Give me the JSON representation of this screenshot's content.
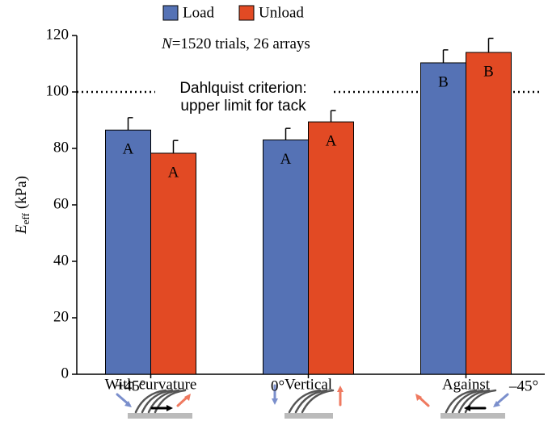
{
  "chart_data": {
    "type": "bar",
    "ylabel": {
      "symbol": "E",
      "subscript": "eff",
      "unit": "(kPa)"
    },
    "annotation": {
      "italic": "N",
      "rest": "=1520 trials, 26 arrays"
    },
    "categories": [
      "With curvature",
      "Vertical",
      "Against"
    ],
    "category_angles": [
      "+45°",
      "0°",
      "–45°"
    ],
    "series": [
      {
        "name": "Load",
        "color": "#5572b5",
        "values": [
          86.5,
          83,
          110.3
        ],
        "errors": [
          4.4,
          4.1,
          4.6
        ],
        "letters": [
          "A",
          "A",
          "B"
        ]
      },
      {
        "name": "Unload",
        "color": "#e24a24",
        "values": [
          78.3,
          89.4,
          114
        ],
        "errors": [
          4.5,
          4,
          5
        ],
        "letters": [
          "A",
          "A",
          "B"
        ]
      }
    ],
    "reference_line": {
      "value": 100,
      "label": [
        "Dahlquist criterion:",
        "upper limit for tack"
      ]
    },
    "ylim": [
      0,
      120
    ],
    "yticks": [
      0,
      20,
      40,
      60,
      80,
      100,
      120
    ]
  }
}
